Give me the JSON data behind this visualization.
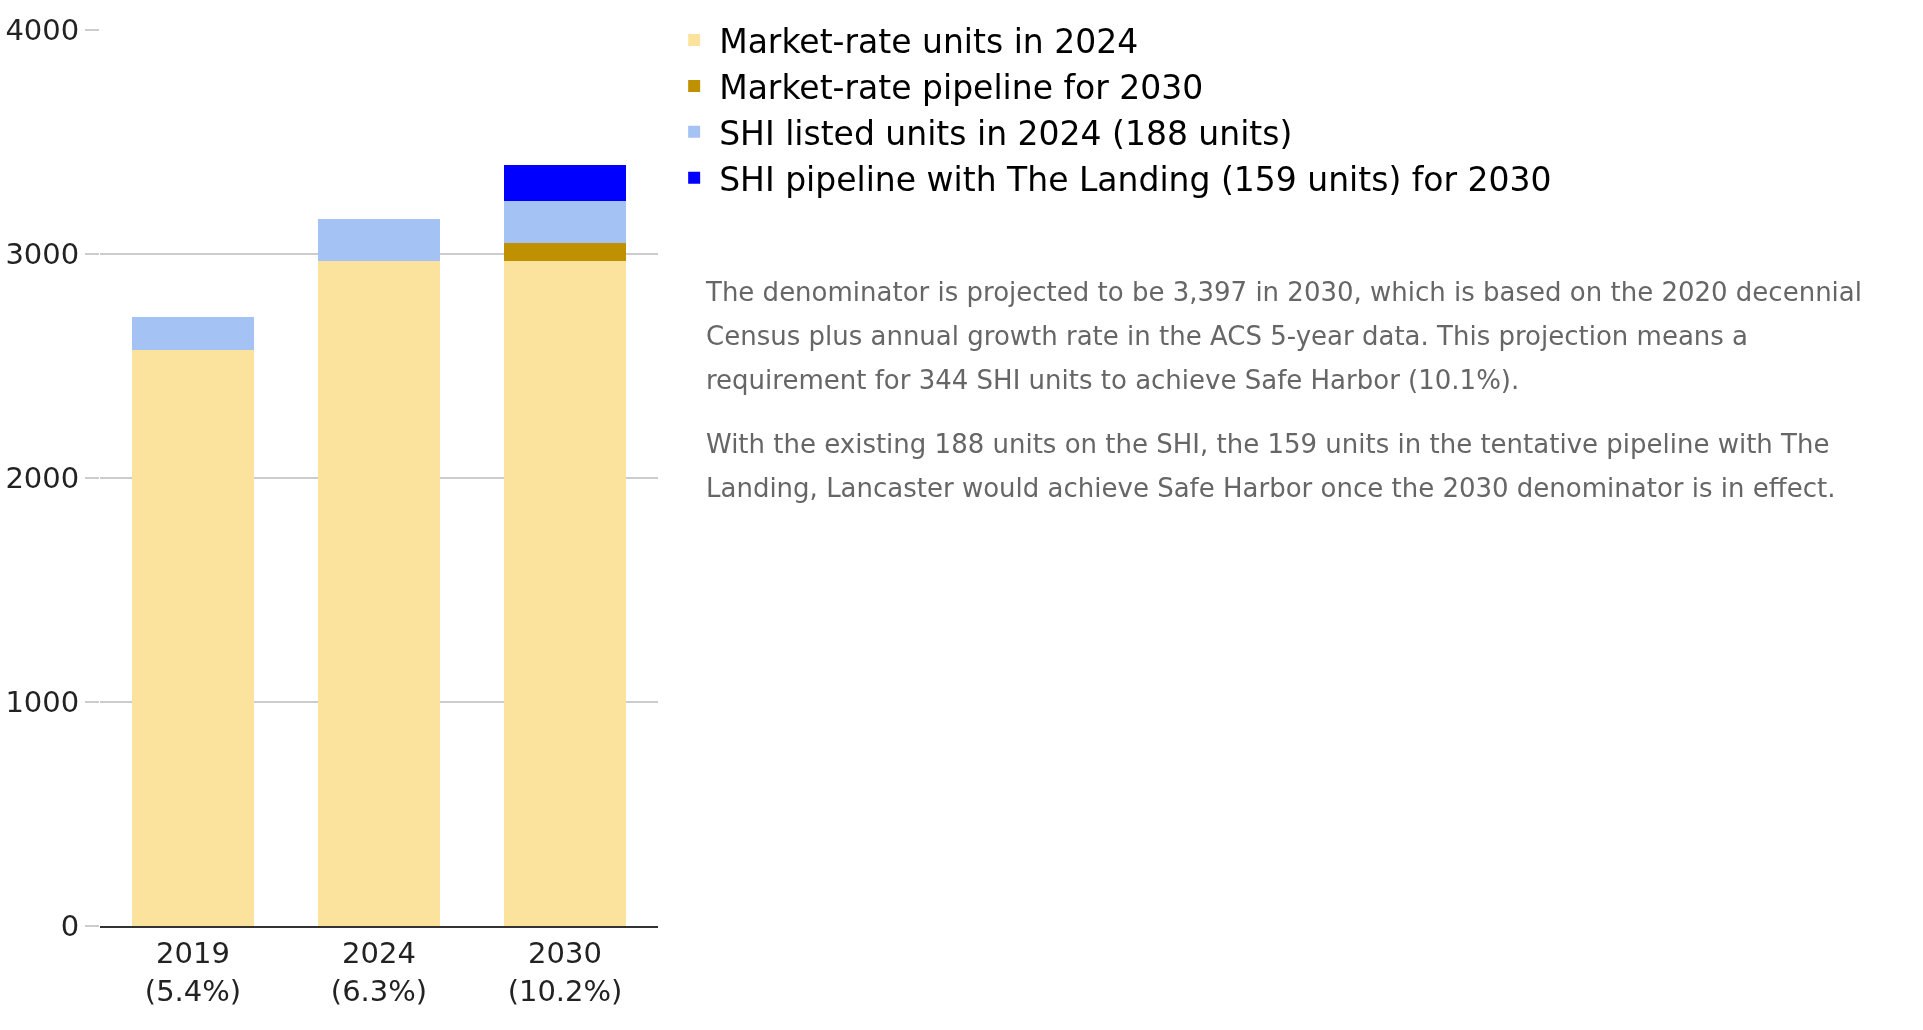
{
  "chart_data": {
    "type": "bar",
    "stacked": true,
    "categories": [
      "2019\n(5.4%)",
      "2024\n(6.3%)",
      "2030\n(10.2%)"
    ],
    "series": [
      {
        "name": "Market-rate units in 2024",
        "color": "#fce39d",
        "values": [
          2570,
          2970,
          2970
        ]
      },
      {
        "name": "Market-rate pipeline for 2030",
        "color": "#bf9000",
        "values": [
          null,
          null,
          80
        ]
      },
      {
        "name": "SHI listed units in 2024 (188 units)",
        "color": "#a4c2f4",
        "values": [
          150,
          188,
          188
        ]
      },
      {
        "name": "SHI pipeline with The Landing (159 units) for 2030",
        "color": "#0000ff",
        "values": [
          null,
          null,
          159
        ]
      }
    ],
    "ylim": [
      0,
      4000
    ],
    "yticks": [
      0,
      1000,
      2000,
      3000,
      4000
    ],
    "grid": "y",
    "legend": "top right",
    "annotations": [
      "The denominator is projected to be 3,397 in 2030, which is based on the 2020 decennial Census plus annual growth rate in the ACS 5-year data. This projection means a requirement for 344 SHI units to achieve Safe Harbor (10.1%).",
      "With the existing 188 units on the SHI, the 159 units in the tentative pipeline with The Landing, Lancaster would achieve Safe Harbor once the 2030 denominator is in effect."
    ]
  }
}
